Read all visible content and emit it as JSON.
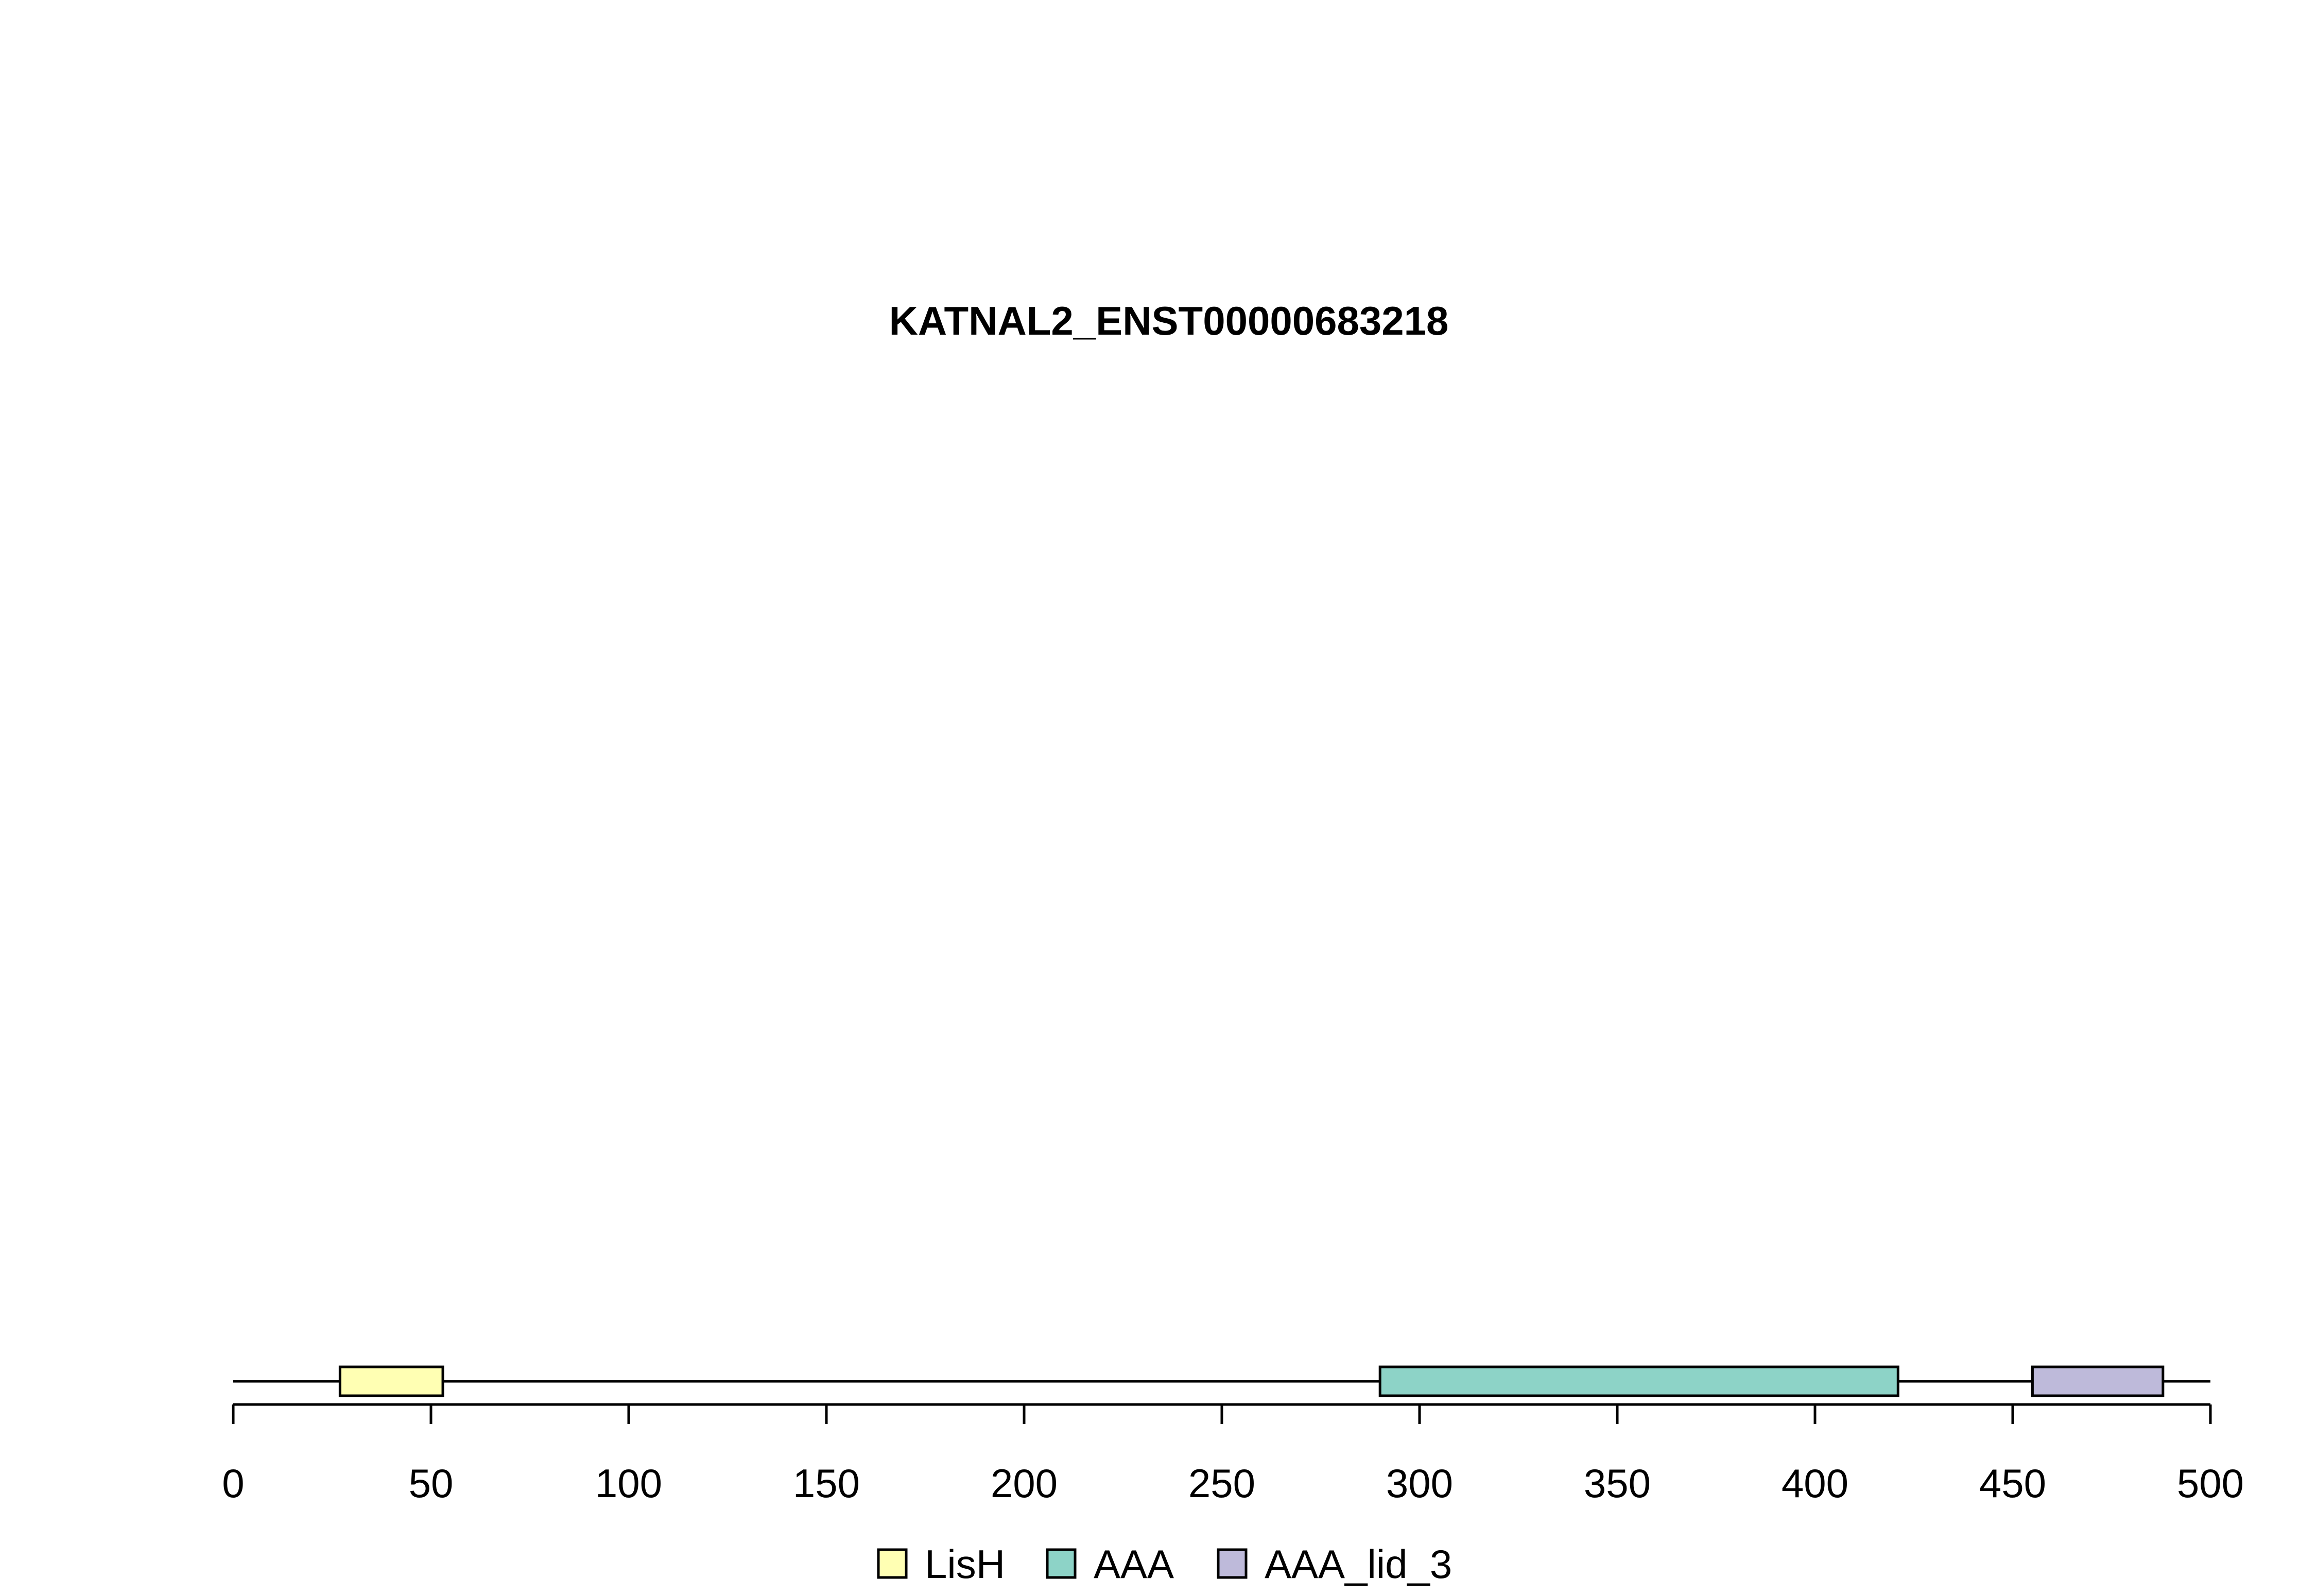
{
  "chart_data": {
    "type": "domain-diagram",
    "title": "KATNAL2_ENST00000683218",
    "protein_length": 500,
    "xlim": [
      0,
      500
    ],
    "ticks": [
      {
        "value": 0,
        "label": "0"
      },
      {
        "value": 50,
        "label": "50"
      },
      {
        "value": 100,
        "label": "100"
      },
      {
        "value": 150,
        "label": "150"
      },
      {
        "value": 200,
        "label": "200"
      },
      {
        "value": 250,
        "label": "250"
      },
      {
        "value": 300,
        "label": "300"
      },
      {
        "value": 350,
        "label": "350"
      },
      {
        "value": 400,
        "label": "400"
      },
      {
        "value": 450,
        "label": "450"
      },
      {
        "value": 500,
        "label": "500"
      }
    ],
    "domains": [
      {
        "name": "LisH",
        "start": 27,
        "end": 53,
        "color": "#FFFFB3"
      },
      {
        "name": "AAA",
        "start": 290,
        "end": 421,
        "color": "#8DD3C7"
      },
      {
        "name": "AAA_lid_3",
        "start": 455,
        "end": 488,
        "color": "#BEBADA"
      }
    ],
    "legend": [
      {
        "label": "LisH",
        "color": "#FFFFB3"
      },
      {
        "label": "AAA",
        "color": "#8DD3C7"
      },
      {
        "label": "AAA_lid_3",
        "color": "#BEBADA"
      }
    ],
    "legend_position": "bottom-center"
  }
}
